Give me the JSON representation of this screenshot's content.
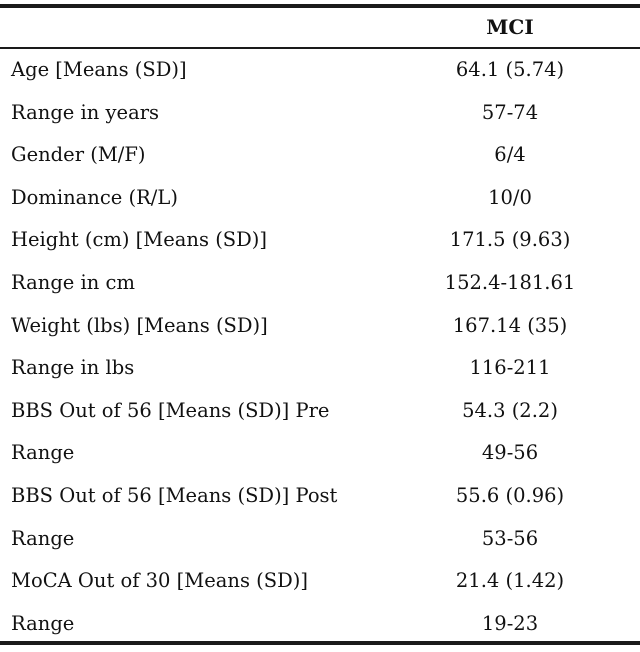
{
  "table": {
    "header": {
      "label_col": "",
      "value_col": "MCI"
    },
    "rows": [
      {
        "label": "Age [Means (SD)]",
        "value": "64.1 (5.74)"
      },
      {
        "label": "Range in years",
        "value": "57-74"
      },
      {
        "label": "Gender (M/F)",
        "value": "6/4"
      },
      {
        "label": "Dominance (R/L)",
        "value": "10/0"
      },
      {
        "label": "Height (cm) [Means (SD)]",
        "value": "171.5 (9.63)"
      },
      {
        "label": "Range in cm",
        "value": "152.4-181.61"
      },
      {
        "label": "Weight (lbs) [Means (SD)]",
        "value": "167.14 (35)"
      },
      {
        "label": "Range in lbs",
        "value": "116-211"
      },
      {
        "label": "BBS Out of 56 [Means (SD)] Pre",
        "value": "54.3 (2.2)"
      },
      {
        "label": "Range",
        "value": "49-56"
      },
      {
        "label": "BBS Out of 56 [Means (SD)] Post",
        "value": "55.6 (0.96)"
      },
      {
        "label": "Range",
        "value": "53-56"
      },
      {
        "label": "MoCA Out of 30 [Means (SD)]",
        "value": "21.4 (1.42)"
      },
      {
        "label": "Range",
        "value": "19-23"
      }
    ]
  }
}
